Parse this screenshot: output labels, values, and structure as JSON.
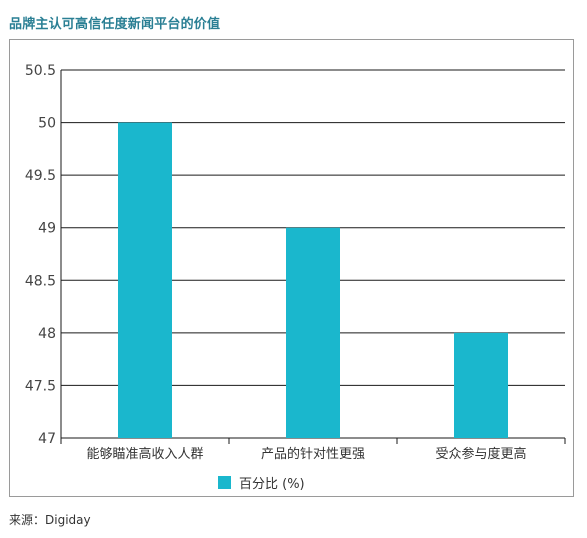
{
  "title": "品牌主认可高信任度新闻平台的价值",
  "source": "来源：Digiday",
  "chart_data": {
    "type": "bar",
    "categories": [
      "能够瞄准高收入人群",
      "产品的针对性更强",
      "受众参与度更高"
    ],
    "series": [
      {
        "name": "百分比 (%)",
        "values": [
          50,
          49,
          48
        ],
        "color": "#1ab7cd"
      }
    ],
    "ylim": [
      47,
      50.5
    ],
    "yticks": [
      "47",
      "47.5",
      "48",
      "48.5",
      "49",
      "49.5",
      "50",
      "50.5"
    ],
    "grid": true,
    "legend_position": "bottom"
  }
}
